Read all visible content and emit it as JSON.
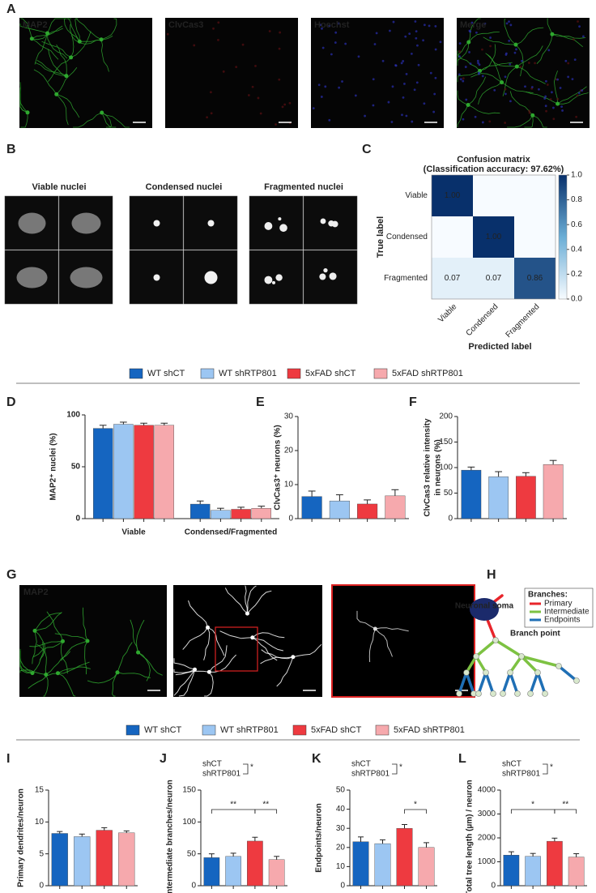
{
  "panels": {
    "letters": [
      "A",
      "B",
      "C",
      "D",
      "E",
      "F",
      "G",
      "H",
      "I",
      "J",
      "K",
      "L"
    ]
  },
  "panel_a": {
    "labels": [
      "MAP2",
      "ClvCas3",
      "Hoechst",
      "Merge"
    ],
    "label_colors": [
      "#3ddc3d",
      "#e02020",
      "#9aa0ff",
      "#ffffff"
    ]
  },
  "panel_b": {
    "labels": [
      "Viable nuclei",
      "Condensed nuclei",
      "Fragmented nuclei"
    ]
  },
  "panel_g": {
    "label": "MAP2"
  },
  "panel_h": {
    "soma": "Neuronal soma",
    "branch_point": "Branch point",
    "legend_title": "Branches:",
    "legend": [
      {
        "name": "Primary",
        "color": "#e8252b"
      },
      {
        "name": "Intermediate",
        "color": "#7dc242"
      },
      {
        "name": "Endpoints",
        "color": "#1f6fb5"
      }
    ]
  },
  "legends": [
    [
      {
        "name": "WT shCT",
        "color": "#1565c0"
      },
      {
        "name": "WT shRTP801",
        "color": "#9cc6f2"
      },
      {
        "name": "5xFAD shCT",
        "color": "#ee3a40"
      },
      {
        "name": "5xFAD shRTP801",
        "color": "#f6a9ad"
      }
    ],
    [
      {
        "name": "WT shCT",
        "color": "#1565c0"
      },
      {
        "name": "WT shRTP801",
        "color": "#9cc6f2"
      },
      {
        "name": "5xFAD shCT",
        "color": "#ee3a40"
      },
      {
        "name": "5xFAD shRTP801",
        "color": "#f6a9ad"
      }
    ]
  ],
  "chart_data": [
    {
      "type": "heatmap",
      "title": "Confusion matrix",
      "subtitle": "(Classification accuracy: 97.62%)",
      "x_categories": [
        "Viable",
        "Condensed",
        "Fragmented"
      ],
      "y_categories": [
        "Viable",
        "Condensed",
        "Fragmented"
      ],
      "xlabel": "Predicted label",
      "ylabel": "True label",
      "values": [
        [
          1,
          0,
          0
        ],
        [
          0,
          1,
          0
        ],
        [
          0.07,
          0.07,
          0.86
        ]
      ],
      "value_labels": [
        [
          "1.00",
          null,
          null
        ],
        [
          null,
          "1.00",
          null
        ],
        [
          "0.07",
          "0.07",
          "0.86"
        ]
      ],
      "clim": [
        0,
        1
      ],
      "cticks": [
        {
          "value": 0,
          "label": "0.0"
        },
        0.2,
        0.4,
        0.6,
        0.8,
        {
          "value": 1,
          "label": "1.0"
        }
      ],
      "colormap": [
        "#f7fbff",
        "#6baed6",
        "#08306b"
      ]
    },
    {
      "type": "bar",
      "ylabel": "MAP2⁺ nuclei (%)",
      "categories": [
        "Viable",
        "Condensed/Fragmented"
      ],
      "series": [
        {
          "values": [
            87,
            14
          ],
          "errors": [
            3,
            3
          ]
        },
        {
          "values": [
            91,
            8
          ],
          "errors": [
            2,
            2
          ]
        },
        {
          "values": [
            90,
            9
          ],
          "errors": [
            2,
            2
          ]
        },
        {
          "values": [
            90,
            10
          ],
          "errors": [
            2,
            2
          ]
        }
      ],
      "ylim": [
        0,
        100
      ],
      "yticks": [
        0,
        50,
        100
      ]
    },
    {
      "type": "bar",
      "ylabel": "ClvCas3⁺ neurons (%)",
      "values": [
        6.5,
        5.2,
        4.3,
        6.7
      ],
      "errors": [
        1.6,
        1.8,
        1.2,
        1.8
      ],
      "ylim": [
        0,
        30
      ],
      "yticks": [
        0,
        10,
        20,
        30
      ]
    },
    {
      "type": "bar",
      "ylabel": [
        "ClvCas3 relative intensity",
        "in neurons (%)"
      ],
      "values": [
        95,
        82,
        83,
        106
      ],
      "errors": [
        6,
        10,
        7,
        8
      ],
      "ylim": [
        0,
        200
      ],
      "yticks": [
        0,
        50,
        100,
        150,
        200
      ]
    },
    {
      "type": "bar",
      "ylabel": "Primary dendrites/neuron",
      "values": [
        8.2,
        7.7,
        8.7,
        8.3
      ],
      "errors": [
        0.3,
        0.4,
        0.4,
        0.3
      ],
      "ylim": [
        0,
        15
      ],
      "yticks": [
        0,
        5,
        10,
        15
      ]
    },
    {
      "type": "bar",
      "ylabel": "Intermediate branches/neuron",
      "values": [
        44,
        46,
        70,
        41
      ],
      "errors": [
        6,
        5,
        6,
        5
      ],
      "ylim": [
        0,
        150
      ],
      "yticks": [
        0,
        50,
        100,
        150
      ],
      "interaction": {
        "labels": [
          "shCT",
          "shRTP801"
        ],
        "label": "*"
      },
      "comparisons": [
        {
          "between": [
            0,
            2
          ],
          "label": "**"
        },
        {
          "between": [
            2,
            3
          ],
          "label": "**"
        }
      ]
    },
    {
      "type": "bar",
      "ylabel": "Endpoints/neuron",
      "values": [
        23,
        22,
        30,
        20
      ],
      "errors": [
        2.5,
        2,
        2,
        2.5
      ],
      "ylim": [
        0,
        50
      ],
      "yticks": [
        0,
        10,
        20,
        30,
        40,
        50
      ],
      "interaction": {
        "labels": [
          "shCT",
          "shRTP801"
        ],
        "label": "*"
      },
      "comparisons": [
        {
          "between": [
            2,
            3
          ],
          "label": "*"
        }
      ]
    },
    {
      "type": "bar",
      "ylabel": "Total tree length (µm) / neuron",
      "values": [
        1280,
        1230,
        1860,
        1200
      ],
      "errors": [
        140,
        120,
        130,
        140
      ],
      "ylim": [
        0,
        4000
      ],
      "yticks": [
        0,
        1000,
        2000,
        3000,
        4000
      ],
      "interaction": {
        "labels": [
          "shCT",
          "shRTP801"
        ],
        "label": "*"
      },
      "comparisons": [
        {
          "between": [
            0,
            2
          ],
          "label": "*"
        },
        {
          "between": [
            2,
            3
          ],
          "label": "**"
        }
      ]
    }
  ]
}
